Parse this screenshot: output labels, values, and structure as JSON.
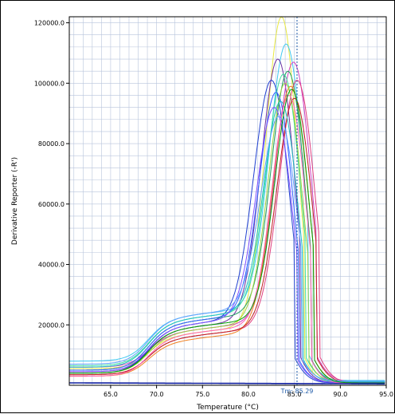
{
  "chart_data": {
    "type": "line",
    "title": "",
    "xlabel": "Temperature (°C)",
    "ylabel": "Derivative Reporter (-R')",
    "xlim": [
      60.5,
      95.0
    ],
    "ylim": [
      0,
      122000
    ],
    "x_ticks": [
      "65.0",
      "70.0",
      "75.0",
      "80.0",
      "85.0",
      "90.0",
      "95.0"
    ],
    "x_tick_values": [
      65,
      70,
      75,
      80,
      85,
      90,
      95
    ],
    "y_ticks": [
      "20000.0",
      "40000.0",
      "60000.0",
      "80000.0",
      "100000.0",
      "120000.0"
    ],
    "y_tick_values": [
      20000,
      40000,
      60000,
      80000,
      100000,
      120000
    ],
    "grid": true,
    "marker": {
      "x": 85.29,
      "label": "Tm: 85.29",
      "color": "#1e5aa8"
    },
    "series": [
      {
        "color": "#e8e840",
        "peak_x": 83.6,
        "peak_y": 122000,
        "width": 1.7,
        "base": 5500,
        "shoulder": 16000
      },
      {
        "color": "#40c8f0",
        "peak_x": 84.1,
        "peak_y": 113000,
        "width": 1.8,
        "base": 8000,
        "shoulder": 22000
      },
      {
        "color": "#7030a0",
        "peak_x": 83.2,
        "peak_y": 108000,
        "width": 1.8,
        "base": 4500,
        "shoulder": 18000
      },
      {
        "color": "#d040c0",
        "peak_x": 84.9,
        "peak_y": 107000,
        "width": 1.9,
        "base": 6000,
        "shoulder": 17000
      },
      {
        "color": "#2040d0",
        "peak_x": 82.5,
        "peak_y": 101000,
        "width": 1.9,
        "base": 4000,
        "shoulder": 19000
      },
      {
        "color": "#20a060",
        "peak_x": 84.3,
        "peak_y": 104000,
        "width": 1.8,
        "base": 5000,
        "shoulder": 20000
      },
      {
        "color": "#e04080",
        "peak_x": 85.3,
        "peak_y": 101000,
        "width": 1.9,
        "base": 3500,
        "shoulder": 15000
      },
      {
        "color": "#40e0a0",
        "peak_x": 83.8,
        "peak_y": 103000,
        "width": 1.8,
        "base": 6500,
        "shoulder": 21000
      },
      {
        "color": "#f08020",
        "peak_x": 84.6,
        "peak_y": 99000,
        "width": 1.9,
        "base": 3000,
        "shoulder": 14000
      },
      {
        "color": "#3060ff",
        "peak_x": 83.0,
        "peak_y": 97000,
        "width": 1.8,
        "base": 5000,
        "shoulder": 20000
      },
      {
        "color": "#a0d040",
        "peak_x": 84.0,
        "peak_y": 100000,
        "width": 1.8,
        "base": 4000,
        "shoulder": 17000
      },
      {
        "color": "#c02020",
        "peak_x": 85.0,
        "peak_y": 95000,
        "width": 1.9,
        "base": 3500,
        "shoulder": 15000
      },
      {
        "color": "#20c0c0",
        "peak_x": 83.5,
        "peak_y": 94000,
        "width": 1.8,
        "base": 6000,
        "shoulder": 21000
      },
      {
        "color": "#8050ff",
        "peak_x": 82.8,
        "peak_y": 92000,
        "width": 1.9,
        "base": 4500,
        "shoulder": 19000
      },
      {
        "color": "#ff60b0",
        "peak_x": 84.4,
        "peak_y": 96000,
        "width": 1.8,
        "base": 3000,
        "shoulder": 16000
      },
      {
        "color": "#60a0ff",
        "peak_x": 83.3,
        "peak_y": 89000,
        "width": 1.9,
        "base": 7000,
        "shoulder": 22000
      },
      {
        "color": "#00a000",
        "peak_x": 84.7,
        "peak_y": 98000,
        "width": 1.8,
        "base": 4000,
        "shoulder": 18000
      },
      {
        "color": "#1020a0",
        "peak_x": 60,
        "peak_y": 0,
        "width": 1.0,
        "base": 800,
        "shoulder": 0,
        "flat": true
      }
    ]
  }
}
